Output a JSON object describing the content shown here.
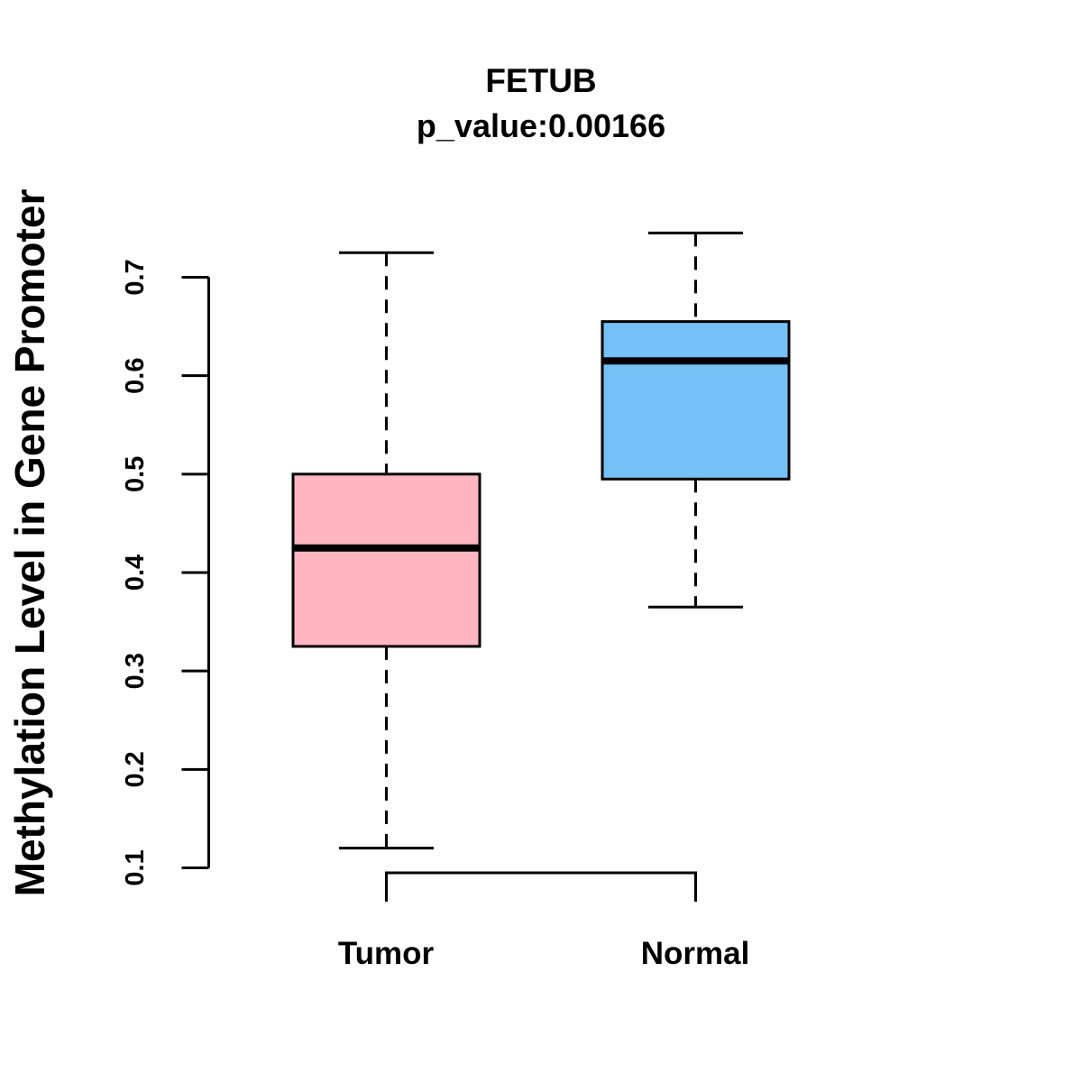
{
  "chart_data": {
    "type": "boxplot",
    "title": "FETUB",
    "subtitle": "p_value:0.00166",
    "ylabel": "Methylation Level in Gene Promoter",
    "xlabel": "",
    "categories": [
      "Tumor",
      "Normal"
    ],
    "series": [
      {
        "name": "Tumor",
        "min": 0.12,
        "q1": 0.325,
        "median": 0.425,
        "q3": 0.5,
        "max": 0.725,
        "fill_color": "#FFB6C1"
      },
      {
        "name": "Normal",
        "min": 0.365,
        "q1": 0.495,
        "median": 0.615,
        "q3": 0.655,
        "max": 0.745,
        "fill_color": "#74C0F7"
      }
    ],
    "y_axis": {
      "ticks": [
        0.1,
        0.2,
        0.3,
        0.4,
        0.5,
        0.6,
        0.7
      ],
      "tick_labels": [
        "0.1",
        "0.2",
        "0.3",
        "0.4",
        "0.5",
        "0.6",
        "0.7"
      ],
      "range": [
        0.1,
        0.7
      ]
    },
    "layout_hints": {
      "grid": "off",
      "legend": "none",
      "whisker_style": "dashed",
      "orientation": "vertical"
    },
    "colors": {
      "stroke": "#000000",
      "background": "#FFFFFF"
    }
  }
}
